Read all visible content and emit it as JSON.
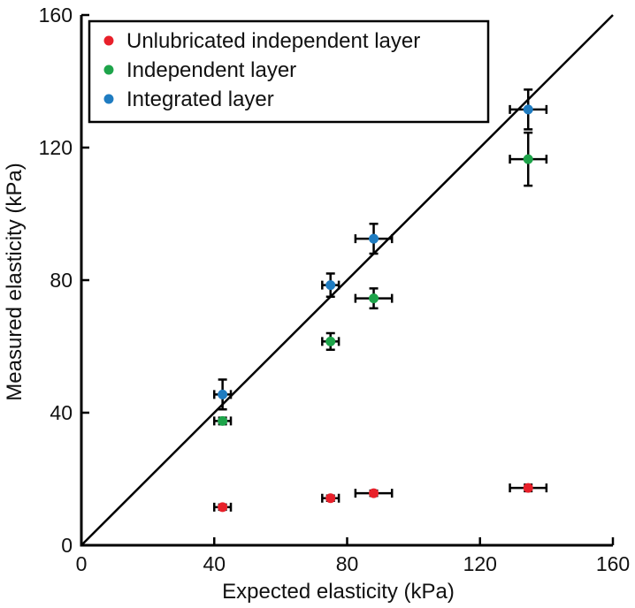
{
  "chart_data": {
    "type": "scatter",
    "xlabel": "Expected elasticity (kPa)",
    "ylabel": "Measured elasticity (kPa)",
    "xlim": [
      0,
      160
    ],
    "ylim": [
      0,
      160
    ],
    "xticks": [
      "0",
      "40",
      "80",
      "120",
      "160"
    ],
    "yticks": [
      "0",
      "40",
      "80",
      "120",
      "160"
    ],
    "grid": false,
    "legend_position": "top-left",
    "reference_line": "y = x",
    "series": [
      {
        "name": "Unlubricated independent layer",
        "color": "#e8202a",
        "points": [
          {
            "x": 42.5,
            "y": 11.5,
            "xerr": 2.5,
            "yerr": 0.8
          },
          {
            "x": 75,
            "y": 14.2,
            "xerr": 2.5,
            "yerr": 0.8
          },
          {
            "x": 88,
            "y": 15.7,
            "xerr": 5.5,
            "yerr": 0.8
          },
          {
            "x": 134.5,
            "y": 17.3,
            "xerr": 5.5,
            "yerr": 1.0
          }
        ]
      },
      {
        "name": "Independent layer",
        "color": "#1ea44a",
        "points": [
          {
            "x": 42.5,
            "y": 37.5,
            "xerr": 2.5,
            "yerr": 1.0
          },
          {
            "x": 75,
            "y": 61.5,
            "xerr": 2.5,
            "yerr": 2.5
          },
          {
            "x": 88,
            "y": 74.5,
            "xerr": 5.5,
            "yerr": 3.0
          },
          {
            "x": 134.5,
            "y": 116.5,
            "xerr": 5.5,
            "yerr": 8.0
          }
        ]
      },
      {
        "name": "Integrated layer",
        "color": "#1f7cc1",
        "points": [
          {
            "x": 42.5,
            "y": 45.5,
            "xerr": 2.5,
            "yerr": 4.5
          },
          {
            "x": 75,
            "y": 78.5,
            "xerr": 2.5,
            "yerr": 3.5
          },
          {
            "x": 88,
            "y": 92.5,
            "xerr": 5.5,
            "yerr": 4.5
          },
          {
            "x": 134.5,
            "y": 131.5,
            "xerr": 5.5,
            "yerr": 6.0
          }
        ]
      }
    ]
  }
}
